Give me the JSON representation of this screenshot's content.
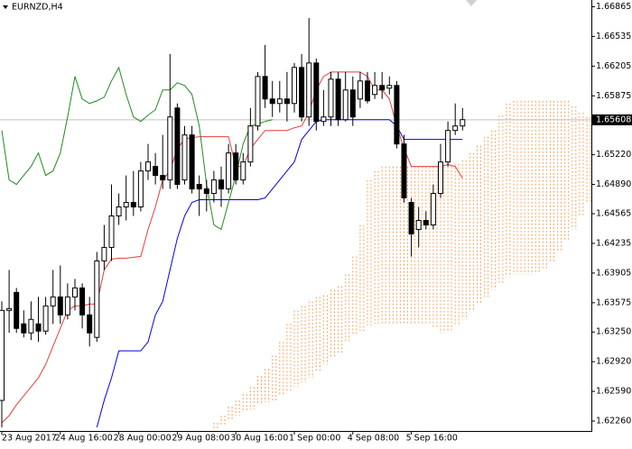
{
  "chart_data": {
    "type": "candlestick",
    "title": "EURNZD,H4",
    "categories": [
      "23 Aug 2017",
      null,
      null,
      null,
      null,
      null,
      null,
      null,
      "24 Aug 16:00",
      null,
      null,
      null,
      null,
      null,
      null,
      null,
      "28 Aug 00:00",
      null,
      null,
      null,
      null,
      null,
      null,
      null,
      "29 Aug 08:00",
      null,
      null,
      null,
      null,
      null,
      null,
      null,
      "30 Aug 16:00",
      null,
      null,
      null,
      null,
      null,
      null,
      null,
      "1 Sep 00:00",
      null,
      null,
      null,
      null,
      null,
      null,
      null,
      "4 Sep 08:00",
      null,
      null,
      null,
      null,
      null,
      null,
      null,
      "5 Sep 16:00",
      null,
      null,
      null,
      null,
      null,
      null,
      null,
      null,
      null,
      null,
      null,
      null,
      null,
      null,
      null,
      null,
      null,
      null,
      null,
      null,
      null,
      null,
      null,
      null
    ],
    "open": [
      1.6249,
      1.6349,
      1.6369,
      1.6334,
      1.6324,
      1.6334,
      1.6326,
      1.6354,
      1.6364,
      1.6344,
      1.6364,
      1.6374,
      1.6344,
      1.6319,
      1.6404,
      1.6419,
      1.6454,
      1.6464,
      1.6469,
      1.6464,
      1.6504,
      1.6509,
      1.6499,
      1.6494,
      1.6574,
      1.6494,
      1.6544,
      1.6489,
      1.6484,
      1.6479,
      1.6494,
      1.6484,
      1.6524,
      1.6494,
      1.6514,
      1.6554,
      1.6609,
      1.6584,
      1.6579,
      1.6584,
      1.6579,
      1.6619,
      1.6564,
      1.6624,
      1.6559,
      1.6564,
      1.6606,
      1.6561,
      1.6594,
      1.6584,
      1.6604,
      1.6589,
      1.6599,
      1.6596,
      1.6599,
      1.6534,
      1.6469,
      1.6439,
      1.6449,
      1.6444,
      1.6479,
      1.6514,
      1.6549,
      1.6554,
      null,
      null,
      null,
      null,
      null,
      null,
      null,
      null,
      null,
      null,
      null,
      null,
      null,
      null,
      null,
      null,
      null
    ],
    "high": [
      1.6359,
      1.6394,
      1.6374,
      1.6349,
      1.6359,
      1.6364,
      1.6364,
      1.6394,
      1.6399,
      1.6379,
      1.6384,
      1.6379,
      1.6364,
      1.6414,
      1.6444,
      1.6489,
      1.6479,
      1.6499,
      1.6504,
      1.6514,
      1.6534,
      1.6524,
      1.6544,
      1.6634,
      1.6579,
      1.6554,
      1.6554,
      1.6499,
      1.6494,
      1.6504,
      1.6509,
      1.6534,
      1.6534,
      1.6524,
      1.6574,
      1.6614,
      1.6644,
      1.6604,
      1.6604,
      1.6614,
      1.6624,
      1.6634,
      1.6674,
      1.6629,
      1.6594,
      1.6614,
      1.6614,
      1.6614,
      1.6609,
      1.6614,
      1.6614,
      1.6614,
      1.6614,
      1.6609,
      1.6604,
      1.6544,
      1.6474,
      1.6464,
      1.6459,
      1.6489,
      1.6534,
      1.6559,
      1.6579,
      1.6574,
      null,
      null,
      null,
      null,
      null,
      null,
      null,
      null,
      null,
      null,
      null,
      null,
      null,
      null,
      null,
      null,
      null
    ],
    "low": [
      1.6219,
      1.6324,
      1.6324,
      1.6319,
      1.6316,
      1.6314,
      1.6322,
      1.6334,
      1.6334,
      1.6339,
      1.6349,
      1.6329,
      1.6309,
      1.6314,
      1.6394,
      1.6404,
      1.6444,
      1.6449,
      1.6454,
      1.6459,
      1.6494,
      1.6489,
      1.6484,
      1.6484,
      1.6484,
      1.6489,
      1.6479,
      1.6454,
      1.6459,
      1.6469,
      1.6464,
      1.6479,
      1.6489,
      1.6489,
      1.6509,
      1.6549,
      1.6574,
      1.6564,
      1.6569,
      1.6559,
      1.6569,
      1.6559,
      1.6554,
      1.6549,
      1.6554,
      1.6554,
      1.6554,
      1.6559,
      1.6554,
      1.6574,
      1.6579,
      1.6584,
      1.6584,
      1.6589,
      1.6529,
      1.6469,
      1.6409,
      1.6419,
      1.6439,
      1.6439,
      1.6474,
      1.6509,
      1.6544,
      1.6549,
      null,
      null,
      null,
      null,
      null,
      null,
      null,
      null,
      null,
      null,
      null,
      null,
      null,
      null,
      null,
      null,
      null
    ],
    "close": [
      1.6349,
      1.6351,
      1.6329,
      1.6324,
      1.6339,
      1.6326,
      1.6354,
      1.6364,
      1.6344,
      1.6364,
      1.6374,
      1.6344,
      1.6324,
      1.6404,
      1.6419,
      1.6454,
      1.6464,
      1.6469,
      1.6464,
      1.6504,
      1.6514,
      1.6499,
      1.6494,
      1.6564,
      1.6489,
      1.6544,
      1.6484,
      1.6484,
      1.6479,
      1.6494,
      1.6484,
      1.6524,
      1.6494,
      1.6514,
      1.6554,
      1.6609,
      1.6584,
      1.6579,
      1.6584,
      1.6579,
      1.6619,
      1.6564,
      1.6624,
      1.6559,
      1.6564,
      1.6606,
      1.6561,
      1.6594,
      1.6564,
      1.6604,
      1.6582,
      1.6599,
      1.6594,
      1.6599,
      1.6534,
      1.6474,
      1.6434,
      1.6449,
      1.6444,
      1.6479,
      1.6514,
      1.6549,
      1.6554,
      1.6561,
      null,
      null,
      null,
      null,
      null,
      null,
      null,
      null,
      null,
      null,
      null,
      null,
      null,
      null,
      null,
      null,
      null
    ],
    "candle_colors": {
      "up": "#ffffff",
      "down": "#000000",
      "outline": "#000000"
    },
    "series": [
      {
        "color": "#ee3b3b",
        "values": [
          1.6224,
          1.6232,
          1.6244,
          1.6254,
          1.6264,
          1.6274,
          1.6289,
          1.6309,
          1.6329,
          1.6349,
          1.6354,
          1.6354,
          1.6356,
          1.6356,
          1.6394,
          1.6406,
          1.6407,
          1.6407,
          1.6408,
          1.6409,
          1.6439,
          1.6464,
          1.6494,
          1.6504,
          1.6529,
          1.6539,
          1.6541,
          1.6542,
          1.6542,
          1.6542,
          1.6542,
          1.6542,
          1.6509,
          1.6509,
          1.6529,
          1.6539,
          1.6549,
          1.6549,
          1.6549,
          1.6549,
          1.6552,
          1.6554,
          1.6569,
          1.6594,
          1.6609,
          1.6614,
          1.6614,
          1.6614,
          1.6614,
          1.6614,
          1.6609,
          1.6594,
          1.6594,
          1.6584,
          1.6554,
          1.6529,
          1.6509,
          1.6509,
          1.6509,
          1.6509,
          1.6509,
          1.6511,
          1.6509,
          1.6496,
          null,
          null,
          null,
          null,
          null,
          null,
          null,
          null,
          null,
          null,
          null,
          null,
          null,
          null,
          null,
          null,
          null
        ]
      },
      {
        "color": "#0000ee",
        "values": [
          null,
          null,
          null,
          null,
          null,
          null,
          null,
          null,
          null,
          null,
          null,
          null,
          null,
          1.6219,
          1.6249,
          1.6274,
          1.6304,
          1.6304,
          1.6304,
          1.6304,
          1.6314,
          1.6344,
          1.6359,
          1.6394,
          1.6429,
          1.6454,
          1.6469,
          1.6472,
          1.6472,
          1.6472,
          1.6472,
          1.6472,
          1.6472,
          1.6472,
          1.6472,
          1.6472,
          1.6474,
          1.6484,
          1.6494,
          1.6504,
          1.6514,
          1.6539,
          1.6549,
          1.6559,
          1.6561,
          1.6561,
          1.6561,
          1.6561,
          1.6561,
          1.6561,
          1.6561,
          1.6561,
          1.6561,
          1.6561,
          1.6554,
          1.6539,
          1.6539,
          1.6539,
          1.6539,
          1.6539,
          1.6539,
          1.6539,
          1.6539,
          1.6539,
          null,
          null,
          null,
          null,
          null,
          null,
          null,
          null,
          null,
          null,
          null,
          null,
          null,
          null,
          null,
          null,
          null
        ]
      },
      {
        "color": "#1e8c1e",
        "values": [
          1.6549,
          1.6494,
          1.6489,
          1.6499,
          1.6509,
          1.6524,
          1.6499,
          1.6504,
          1.6524,
          1.6564,
          1.6609,
          1.6584,
          1.6579,
          1.6582,
          1.6586,
          1.6604,
          1.6619,
          1.6589,
          1.6564,
          1.6559,
          1.6566,
          1.6572,
          1.6594,
          1.6594,
          1.6602,
          1.6599,
          1.6589,
          1.6554,
          1.6489,
          1.6444,
          1.6439,
          1.6469,
          1.6499,
          1.6534,
          1.6554,
          1.6556,
          1.6559,
          1.6561,
          null,
          null,
          null,
          null,
          null,
          null,
          null,
          null,
          null,
          null,
          null,
          null,
          null,
          null,
          null,
          null,
          null,
          null,
          null,
          null,
          null,
          null,
          null,
          null,
          null,
          null,
          null,
          null,
          null,
          null,
          null,
          null,
          null,
          null,
          null,
          null,
          null,
          null,
          null,
          null,
          null,
          null,
          null
        ]
      }
    ],
    "cloud": {
      "color": "#f4a460",
      "upper": [
        null,
        null,
        null,
        null,
        null,
        null,
        null,
        null,
        null,
        null,
        null,
        null,
        null,
        null,
        null,
        null,
        null,
        null,
        null,
        null,
        null,
        null,
        null,
        null,
        null,
        null,
        null,
        null,
        1.6216,
        1.6224,
        1.6232,
        1.6242,
        1.6249,
        1.6256,
        1.6264,
        1.6276,
        1.6284,
        1.6299,
        1.6314,
        1.6334,
        1.6349,
        1.6354,
        1.6359,
        1.6364,
        1.6366,
        1.6372,
        1.6376,
        1.6389,
        1.6409,
        1.6444,
        1.6494,
        1.6504,
        1.6509,
        1.6509,
        1.6509,
        1.6509,
        1.6509,
        1.6509,
        1.6509,
        1.6509,
        1.6509,
        1.6509,
        1.6512,
        1.6516,
        1.6524,
        1.6532,
        1.6542,
        1.6549,
        1.6566,
        1.6579,
        1.6582,
        1.6582,
        1.6582,
        1.6582,
        1.6582,
        1.6582,
        1.6582,
        1.6582,
        1.6576,
        1.6569,
        1.6564
      ],
      "lower": [
        null,
        null,
        null,
        null,
        null,
        null,
        null,
        null,
        null,
        null,
        null,
        null,
        null,
        null,
        null,
        null,
        null,
        null,
        null,
        null,
        null,
        null,
        null,
        null,
        null,
        null,
        null,
        null,
        1.6216,
        1.6218,
        1.6222,
        1.6226,
        1.6232,
        1.6236,
        1.6239,
        1.6244,
        1.6247,
        1.6249,
        1.6254,
        1.6259,
        1.6264,
        1.6269,
        1.6274,
        1.6282,
        1.6289,
        1.6296,
        1.6302,
        1.6314,
        1.6322,
        1.6326,
        1.6332,
        1.6334,
        1.6334,
        1.6334,
        1.6334,
        1.6334,
        1.6334,
        1.6334,
        1.6334,
        1.6329,
        1.6324,
        1.6326,
        1.6332,
        1.6339,
        1.6349,
        1.6356,
        1.6364,
        1.6372,
        1.6379,
        1.6386,
        1.6389,
        1.6389,
        1.6389,
        1.6391,
        1.6396,
        1.6402,
        1.6414,
        1.6426,
        1.6439,
        1.6454,
        1.6469
      ]
    },
    "last_price": 1.65608,
    "last_price_color": "#000000",
    "last_price_line_color": "#c0c0c0",
    "ylim": [
      1.6215,
      1.6694
    ],
    "yticks": [
      1.66865,
      1.66535,
      1.66205,
      1.65875,
      {
        "value": 1.6522,
        "label": "1.65220"
      },
      {
        "value": 1.6489,
        "label": "1.64890"
      },
      1.64565,
      1.64235,
      1.63905,
      1.63575,
      {
        "value": 1.6325,
        "label": "1.63250"
      },
      {
        "value": 1.6292,
        "label": "1.62920"
      },
      {
        "value": 1.6259,
        "label": "1.62590"
      },
      {
        "value": 1.6226,
        "label": "1.62260"
      }
    ]
  }
}
